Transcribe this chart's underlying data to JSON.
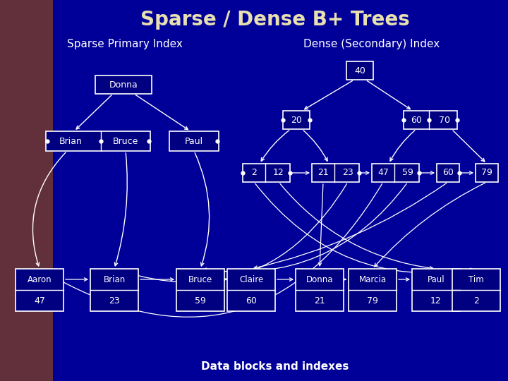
{
  "title": "Sparse / Dense B+ Trees",
  "subtitle_left": "Sparse Primary Index",
  "subtitle_right": "Dense (Secondary) Index",
  "footer": "Data blocks and indexes",
  "bg_color": "#000099",
  "box_bg": "#000080",
  "box_edge": "#ffffff",
  "text_color": "#ffffff",
  "title_color": "#e8e0b0",
  "data_blocks": [
    {
      "name": "Aaron",
      "val": "47"
    },
    {
      "name": "Brian",
      "val": "23"
    },
    {
      "name": "Bruce",
      "val": "59"
    },
    {
      "name": "Claire",
      "val": "60"
    },
    {
      "name": "Donna",
      "val": "21"
    },
    {
      "name": "Marcia",
      "val": "79"
    },
    {
      "name": "Paul",
      "val": "12"
    },
    {
      "name": "Tim",
      "val": "2"
    }
  ]
}
